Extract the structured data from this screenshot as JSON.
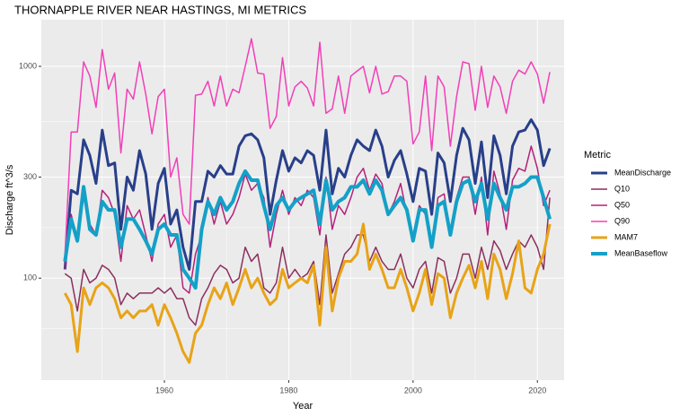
{
  "chart_data": {
    "type": "line",
    "title": "THORNAPPLE RIVER NEAR HASTINGS, MI  METRICS",
    "x_label": "Year",
    "y_label": "Discharge ft^3/s",
    "legend_title": "Metric",
    "ylog": true,
    "grid": true,
    "x": [
      1944,
      1945,
      1946,
      1947,
      1948,
      1949,
      1950,
      1951,
      1952,
      1953,
      1954,
      1955,
      1956,
      1957,
      1958,
      1959,
      1960,
      1961,
      1962,
      1963,
      1964,
      1965,
      1966,
      1967,
      1968,
      1969,
      1970,
      1971,
      1972,
      1973,
      1974,
      1975,
      1976,
      1977,
      1978,
      1979,
      1980,
      1981,
      1982,
      1983,
      1984,
      1985,
      1986,
      1987,
      1988,
      1989,
      1990,
      1991,
      1992,
      1993,
      1994,
      1995,
      1996,
      1997,
      1998,
      1999,
      2000,
      2001,
      2002,
      2003,
      2004,
      2005,
      2006,
      2007,
      2008,
      2009,
      2010,
      2011,
      2012,
      2013,
      2014,
      2015,
      2016,
      2017,
      2018,
      2019,
      2020,
      2021,
      2022
    ],
    "xlim": [
      1940.2,
      2024.3
    ],
    "xticks": [
      1960,
      1980,
      2000,
      2020
    ],
    "ylim": [
      33,
      1660
    ],
    "yticks": [
      100,
      300,
      1000
    ],
    "series": [
      {
        "name": "MeanDischarge",
        "color": "#283f8a",
        "width": 3,
        "values": [
          110,
          260,
          250,
          450,
          380,
          280,
          500,
          340,
          350,
          170,
          300,
          260,
          400,
          310,
          170,
          280,
          330,
          180,
          210,
          140,
          110,
          230,
          230,
          320,
          300,
          340,
          310,
          310,
          420,
          470,
          480,
          450,
          370,
          200,
          290,
          400,
          320,
          370,
          350,
          400,
          380,
          260,
          500,
          250,
          330,
          300,
          380,
          450,
          420,
          400,
          500,
          420,
          300,
          360,
          400,
          310,
          230,
          330,
          320,
          200,
          390,
          350,
          230,
          380,
          510,
          450,
          280,
          440,
          240,
          470,
          380,
          250,
          420,
          490,
          500,
          560,
          500,
          340,
          410
        ]
      },
      {
        "name": "Q10",
        "color": "#8b2f5e",
        "width": 1.5,
        "values": [
          105,
          100,
          70,
          110,
          95,
          100,
          115,
          110,
          100,
          75,
          85,
          80,
          85,
          85,
          85,
          90,
          85,
          90,
          80,
          80,
          65,
          60,
          80,
          90,
          105,
          115,
          110,
          95,
          100,
          140,
          120,
          130,
          90,
          85,
          95,
          140,
          100,
          110,
          100,
          105,
          120,
          75,
          160,
          85,
          105,
          130,
          140,
          160,
          160,
          120,
          140,
          120,
          110,
          110,
          130,
          100,
          90,
          110,
          120,
          85,
          125,
          120,
          85,
          100,
          130,
          130,
          100,
          140,
          110,
          150,
          135,
          110,
          130,
          150,
          140,
          160,
          140,
          110,
          240
        ]
      },
      {
        "name": "Q50",
        "color": "#b5217a",
        "width": 1.5,
        "values": [
          110,
          200,
          150,
          240,
          180,
          160,
          260,
          240,
          200,
          120,
          220,
          190,
          210,
          160,
          120,
          180,
          200,
          140,
          160,
          90,
          85,
          130,
          160,
          240,
          180,
          230,
          180,
          200,
          240,
          310,
          260,
          280,
          240,
          140,
          200,
          260,
          200,
          240,
          220,
          260,
          240,
          160,
          300,
          170,
          220,
          200,
          240,
          300,
          330,
          260,
          310,
          280,
          200,
          230,
          280,
          200,
          160,
          220,
          200,
          140,
          240,
          250,
          160,
          240,
          300,
          300,
          200,
          300,
          160,
          320,
          250,
          170,
          290,
          330,
          320,
          420,
          330,
          220,
          260
        ]
      },
      {
        "name": "Q90",
        "color": "#f23fb8",
        "width": 1.5,
        "values": [
          130,
          490,
          490,
          1050,
          900,
          640,
          1200,
          780,
          930,
          390,
          780,
          700,
          1050,
          740,
          480,
          720,
          780,
          300,
          370,
          200,
          180,
          730,
          740,
          850,
          650,
          900,
          650,
          780,
          750,
          1000,
          1350,
          930,
          920,
          510,
          580,
          1100,
          650,
          800,
          850,
          790,
          650,
          1300,
          600,
          630,
          900,
          600,
          900,
          950,
          1000,
          750,
          1000,
          740,
          760,
          900,
          900,
          850,
          430,
          490,
          900,
          400,
          900,
          800,
          420,
          720,
          1050,
          1030,
          620,
          1000,
          640,
          900,
          800,
          600,
          850,
          960,
          920,
          1050,
          920,
          670,
          940
        ]
      },
      {
        "name": "MAM7",
        "color": "#e8a317",
        "width": 3,
        "values": [
          85,
          75,
          45,
          90,
          75,
          90,
          95,
          90,
          80,
          65,
          70,
          65,
          70,
          70,
          75,
          60,
          75,
          65,
          55,
          45,
          40,
          55,
          60,
          75,
          90,
          80,
          95,
          75,
          90,
          110,
          90,
          100,
          85,
          75,
          80,
          110,
          90,
          95,
          100,
          95,
          115,
          60,
          140,
          70,
          100,
          120,
          120,
          130,
          180,
          110,
          130,
          110,
          90,
          90,
          110,
          90,
          70,
          85,
          110,
          75,
          105,
          100,
          65,
          85,
          100,
          115,
          90,
          120,
          80,
          130,
          110,
          80,
          105,
          150,
          90,
          85,
          110,
          130,
          180
        ]
      },
      {
        "name": "MeanBaseflow",
        "color": "#14a0c8",
        "width": 4,
        "values": [
          120,
          190,
          150,
          270,
          170,
          160,
          230,
          210,
          210,
          140,
          190,
          190,
          170,
          150,
          130,
          170,
          180,
          160,
          160,
          110,
          100,
          90,
          170,
          230,
          200,
          240,
          210,
          230,
          280,
          320,
          290,
          290,
          220,
          170,
          220,
          240,
          210,
          230,
          240,
          250,
          260,
          180,
          290,
          210,
          230,
          240,
          270,
          270,
          290,
          250,
          290,
          260,
          200,
          220,
          240,
          210,
          150,
          210,
          210,
          140,
          220,
          230,
          160,
          230,
          280,
          290,
          230,
          280,
          190,
          280,
          240,
          210,
          270,
          270,
          280,
          300,
          300,
          240,
          190
        ]
      }
    ]
  }
}
